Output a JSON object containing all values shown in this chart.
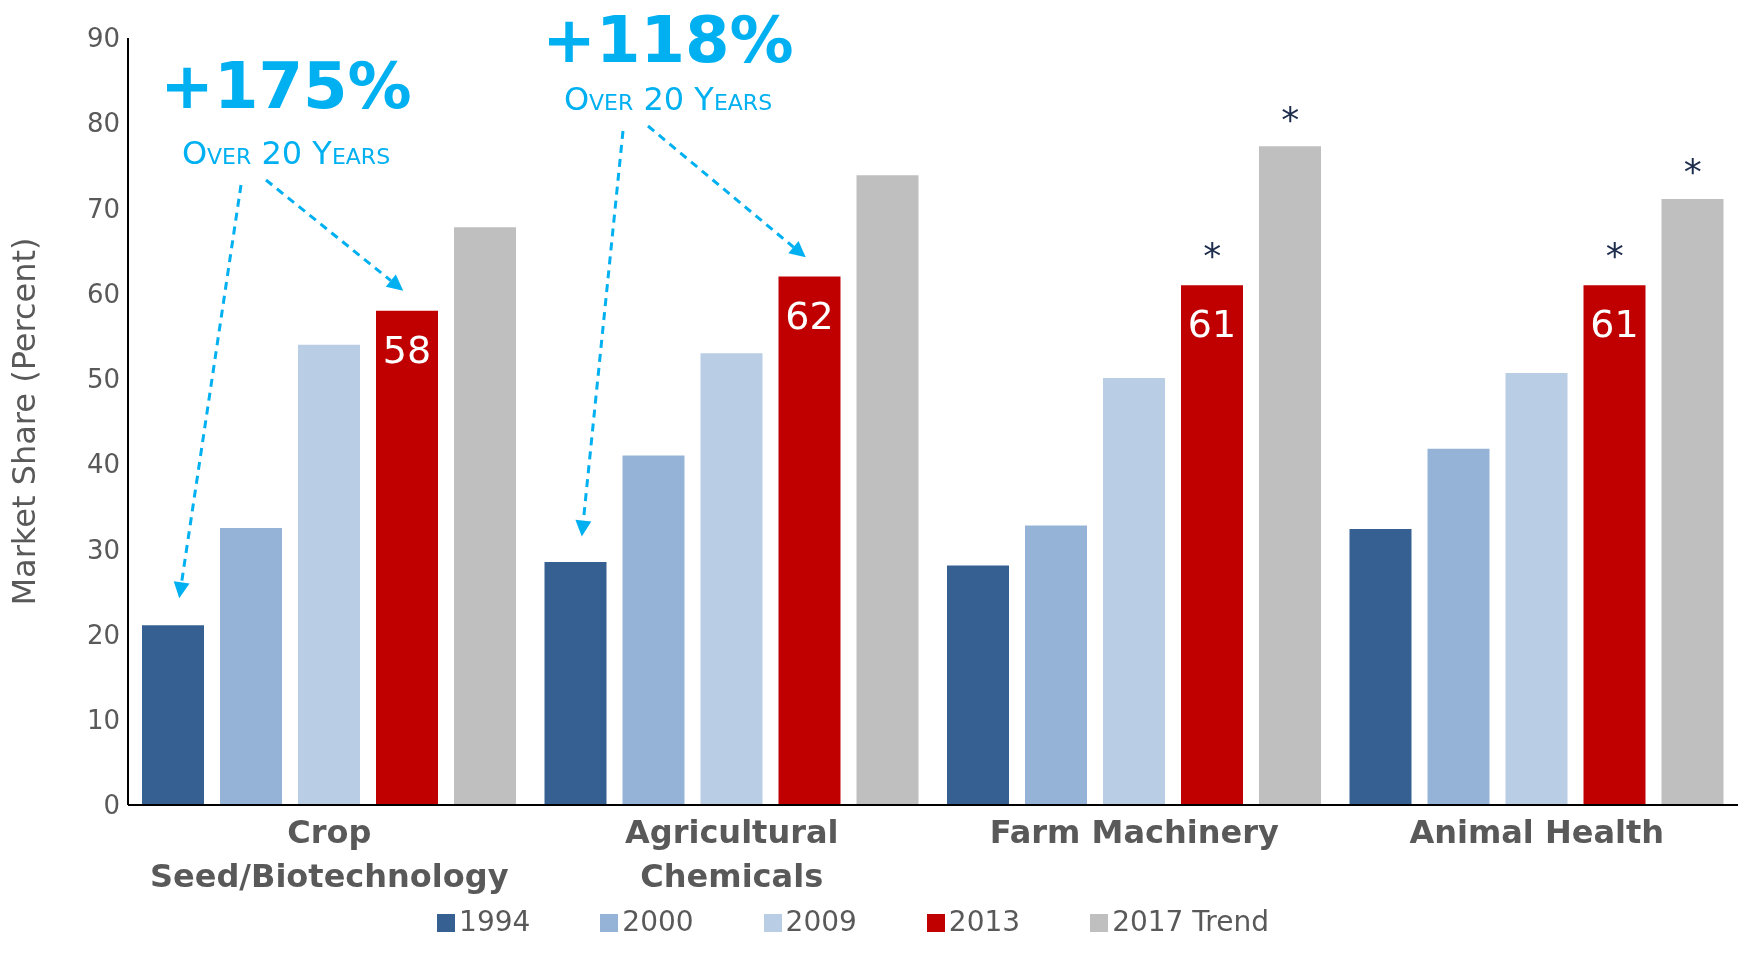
{
  "chart_data": {
    "type": "bar",
    "ylabel": "Market Share (Percent)",
    "categories": [
      "Crop Seed/Biotechnology",
      "Agricultural Chemicals",
      "Farm Machinery",
      "Animal Health"
    ],
    "series": [
      {
        "name": "1994",
        "color": "#376092",
        "values": [
          21.1,
          28.5,
          28.1,
          32.4
        ]
      },
      {
        "name": "2000",
        "color": "#95b3d7",
        "values": [
          32.5,
          41,
          32.8,
          41.8
        ]
      },
      {
        "name": "2009",
        "color": "#b9cde5",
        "values": [
          54,
          53,
          50.1,
          50.7
        ]
      },
      {
        "name": "2013",
        "color": "#c00000",
        "values": [
          58,
          62,
          61,
          61
        ],
        "value_labels": [
          "58",
          "62",
          "61",
          "61"
        ]
      },
      {
        "name": "2017 Trend",
        "color": "#bfbfbf",
        "values": [
          67.8,
          73.9,
          77.3,
          71.1
        ]
      }
    ],
    "ylim": [
      0,
      90
    ],
    "yticks": [
      0,
      10,
      20,
      30,
      40,
      50,
      60,
      70,
      80,
      90
    ],
    "legend": "bottom",
    "annotations": [
      "+175%",
      "Over 20 Years",
      "+118%",
      "Over 20 Years",
      "*",
      "*",
      "*",
      "*"
    ]
  }
}
